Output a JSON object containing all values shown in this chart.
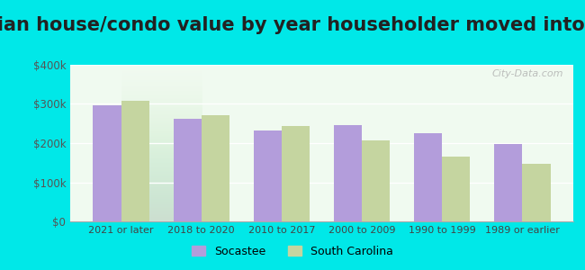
{
  "title": "Median house/condo value by year householder moved into unit",
  "categories": [
    "2021 or later",
    "2018 to 2020",
    "2010 to 2017",
    "2000 to 2009",
    "1990 to 1999",
    "1989 or earlier"
  ],
  "socastee": [
    297000,
    261000,
    233000,
    247000,
    225000,
    198000
  ],
  "south_carolina": [
    308000,
    271000,
    244000,
    208000,
    165000,
    148000
  ],
  "socastee_color": "#b39ddb",
  "sc_color": "#c5d5a0",
  "background_outer": "#00e8e8",
  "background_inner_top": "#f0faf0",
  "background_inner_bottom": "#d8eedd",
  "ylim": [
    0,
    400000
  ],
  "yticks": [
    0,
    100000,
    200000,
    300000,
    400000
  ],
  "legend_labels": [
    "Socastee",
    "South Carolina"
  ],
  "bar_width": 0.35,
  "title_fontsize": 15,
  "watermark": "City-Data.com",
  "ytick_color": "#555555",
  "xtick_color": "#444444",
  "title_color": "#222222",
  "grid_color": "#ffffff"
}
